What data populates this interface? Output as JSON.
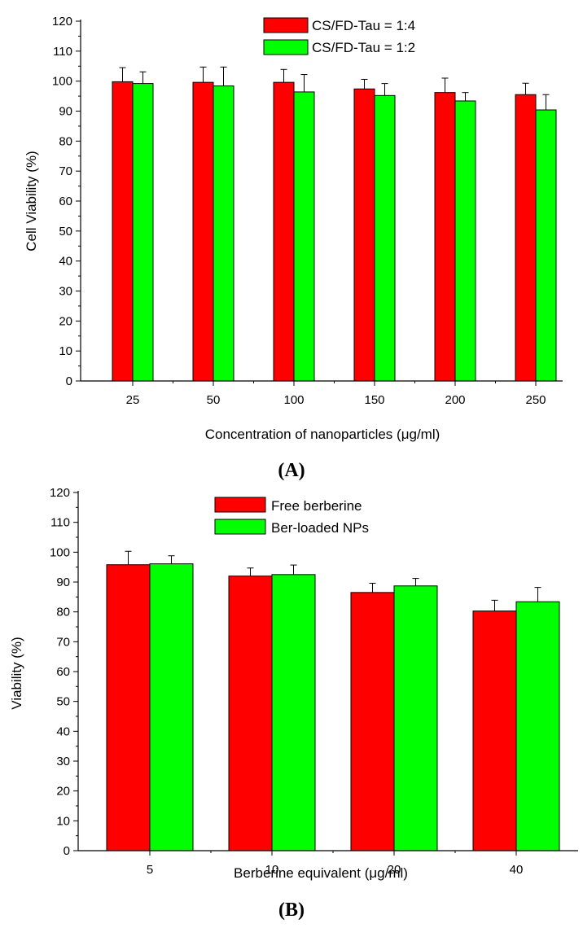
{
  "colors": {
    "series_1": "#ff0000",
    "series_2": "#00ff00",
    "axis": "#000000"
  },
  "chart_data": [
    {
      "type": "bar",
      "panel_label": "(A)",
      "xlabel": "Concentration of nanoparticles (μg/ml)",
      "ylabel": "Cell Viability (%)",
      "ylim": [
        0,
        120
      ],
      "yticks": [
        "0",
        "10",
        "20",
        "30",
        "40",
        "50",
        "60",
        "70",
        "80",
        "90",
        "100",
        "110",
        "120"
      ],
      "categories": [
        "25",
        "50",
        "100",
        "150",
        "200",
        "250"
      ],
      "legend_position": "top-center",
      "grid": false,
      "series": [
        {
          "name": "CS/FD-Tau = 1:4",
          "color": "#ff0000",
          "values": [
            99.8,
            99.6,
            99.6,
            97.4,
            96.2,
            95.5
          ],
          "errors": [
            4.7,
            5.1,
            4.3,
            3.2,
            4.8,
            3.8
          ]
        },
        {
          "name": "CS/FD-Tau = 1:2",
          "color": "#00ff00",
          "values": [
            99.2,
            98.4,
            96.4,
            95.2,
            93.4,
            90.4
          ],
          "errors": [
            3.9,
            6.3,
            5.8,
            4.0,
            2.8,
            5.1
          ]
        }
      ]
    },
    {
      "type": "bar",
      "panel_label": "(B)",
      "xlabel": "Berberine equivalent (μg/ml)",
      "ylabel": "Viability (%)",
      "ylim": [
        0,
        120
      ],
      "yticks": [
        "0",
        "10",
        "20",
        "30",
        "40",
        "50",
        "60",
        "70",
        "80",
        "90",
        "100",
        "110",
        "120"
      ],
      "categories": [
        "5",
        "10",
        "20",
        "40"
      ],
      "legend_position": "top-center",
      "grid": false,
      "series": [
        {
          "name": "Free berberine",
          "color": "#ff0000",
          "values": [
            95.8,
            92.0,
            86.5,
            80.3
          ],
          "errors": [
            4.5,
            2.7,
            3.1,
            3.6
          ]
        },
        {
          "name": "Ber-loaded NPs",
          "color": "#00ff00",
          "values": [
            96.1,
            92.5,
            88.7,
            83.4
          ],
          "errors": [
            2.7,
            3.2,
            2.5,
            4.8
          ]
        }
      ]
    }
  ]
}
